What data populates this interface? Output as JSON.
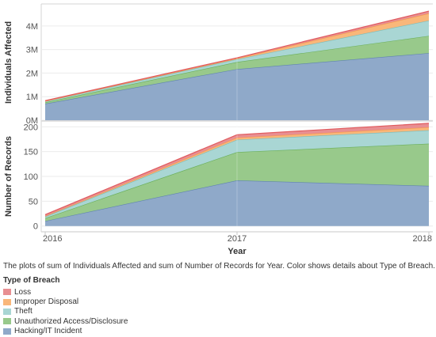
{
  "chart_data": {
    "type": "area",
    "stacked": true,
    "x": [
      "2016",
      "2017",
      "2018"
    ],
    "xlabel": "Year",
    "grid": true,
    "panels": [
      {
        "ylabel": "Individuals Affected",
        "ylim": [
          0,
          4900000
        ],
        "yticks": [
          0,
          1000000,
          2000000,
          3000000,
          4000000
        ],
        "yticklabels": [
          "0M",
          "1M",
          "2M",
          "3M",
          "4M"
        ],
        "series": [
          {
            "name": "Hacking/IT Incident",
            "values": [
              700000,
              2170000,
              2850000
            ]
          },
          {
            "name": "Unauthorized Access/Disclosure",
            "values": [
              60000,
              300000,
              730000
            ]
          },
          {
            "name": "Theft",
            "values": [
              40000,
              120000,
              650000
            ]
          },
          {
            "name": "Improper Disposal",
            "values": [
              10000,
              30000,
              300000
            ]
          },
          {
            "name": "Loss",
            "values": [
              20000,
              30000,
              100000
            ]
          }
        ]
      },
      {
        "ylabel": "Number of Records",
        "ylim": [
          -10,
          210
        ],
        "yticks": [
          0,
          50,
          100,
          150,
          200
        ],
        "yticklabels": [
          "0",
          "50",
          "100",
          "150",
          "200"
        ],
        "series": [
          {
            "name": "Hacking/IT Incident",
            "values": [
              10,
              92,
              81
            ]
          },
          {
            "name": "Unauthorized Access/Disclosure",
            "values": [
              6,
              57,
              85
            ]
          },
          {
            "name": "Theft",
            "values": [
              3,
              25,
              27
            ]
          },
          {
            "name": "Improper Disposal",
            "values": [
              1,
              4,
              6
            ]
          },
          {
            "name": "Loss",
            "values": [
              3,
              6,
              8
            ]
          }
        ]
      }
    ],
    "colors": {
      "Loss": "#e88f92",
      "Improper Disposal": "#f9b77a",
      "Theft": "#a9d6d4",
      "Unauthorized Access/Disclosure": "#98c98b",
      "Hacking/IT Incident": "#8fa9c9"
    },
    "line_colors": {
      "Loss": "#e05a5e",
      "Improper Disposal": "#f59a4a",
      "Theft": "#79bcb8",
      "Unauthorized Access/Disclosure": "#6aaf5a",
      "Hacking/IT Incident": "#5f83b0"
    }
  },
  "caption": "The plots of sum of Individuals Affected and sum of Number of Records for Year.  Color shows details about Type of Breach.",
  "legend": {
    "title": "Type of Breach",
    "items": [
      {
        "label": "Loss",
        "color": "#e88f92"
      },
      {
        "label": "Improper Disposal",
        "color": "#f9b77a"
      },
      {
        "label": "Theft",
        "color": "#a9d6d4"
      },
      {
        "label": "Unauthorized Access/Disclosure",
        "color": "#98c98b"
      },
      {
        "label": "Hacking/IT Incident",
        "color": "#8fa9c9"
      }
    ]
  }
}
